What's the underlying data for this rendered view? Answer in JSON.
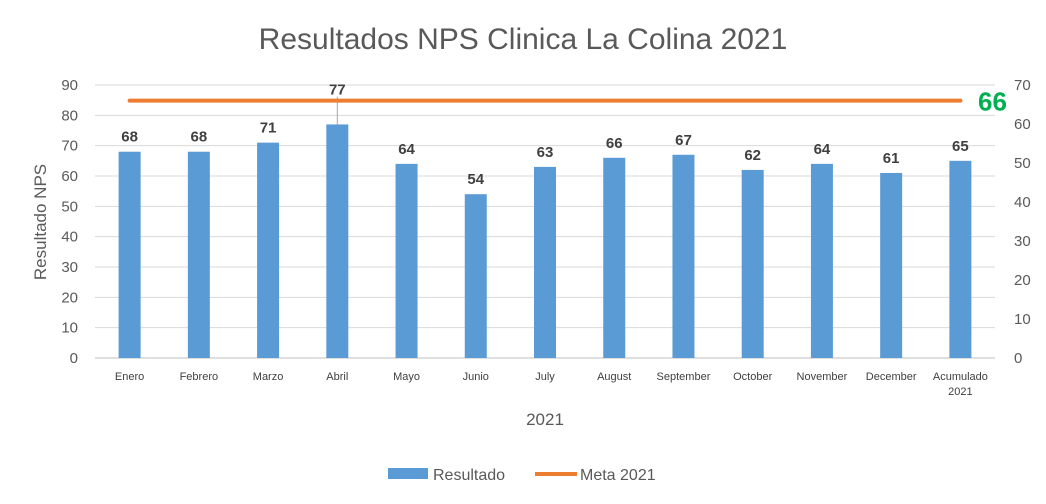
{
  "chart_data": {
    "type": "bar",
    "title": "Resultados NPS Clinica La Colina 2021",
    "xlabel": "2021",
    "ylabel": "Resultado NPS",
    "ylim": [
      0,
      90
    ],
    "y_ticks": [
      0,
      10,
      20,
      30,
      40,
      50,
      60,
      70,
      80,
      90
    ],
    "y2lim": [
      0,
      70
    ],
    "y2_ticks": [
      0,
      10,
      20,
      30,
      40,
      50,
      60,
      70
    ],
    "grid": true,
    "legend_position": "bottom",
    "categories": [
      [
        "Enero"
      ],
      [
        "Febrero"
      ],
      [
        "Marzo"
      ],
      [
        "Abril"
      ],
      [
        "Mayo"
      ],
      [
        "Junio"
      ],
      [
        "July"
      ],
      [
        "August"
      ],
      [
        "September"
      ],
      [
        "October"
      ],
      [
        "November"
      ],
      [
        "December"
      ],
      [
        "Acumulado",
        "2021"
      ]
    ],
    "series": [
      {
        "name": "Resultado",
        "type": "bar",
        "color": "#5B9BD5",
        "values": [
          68,
          68,
          71,
          77,
          64,
          54,
          63,
          66,
          67,
          62,
          64,
          61,
          65
        ],
        "labels": [
          "68",
          "68",
          "71",
          "77",
          "64",
          "54",
          "63",
          "66",
          "67",
          "62",
          "64",
          "61",
          "65"
        ]
      },
      {
        "name": "Meta 2021",
        "type": "line",
        "axis": "secondary",
        "color": "#ED7D31",
        "value": 66,
        "label": "66",
        "label_color": "#00B050"
      }
    ]
  }
}
